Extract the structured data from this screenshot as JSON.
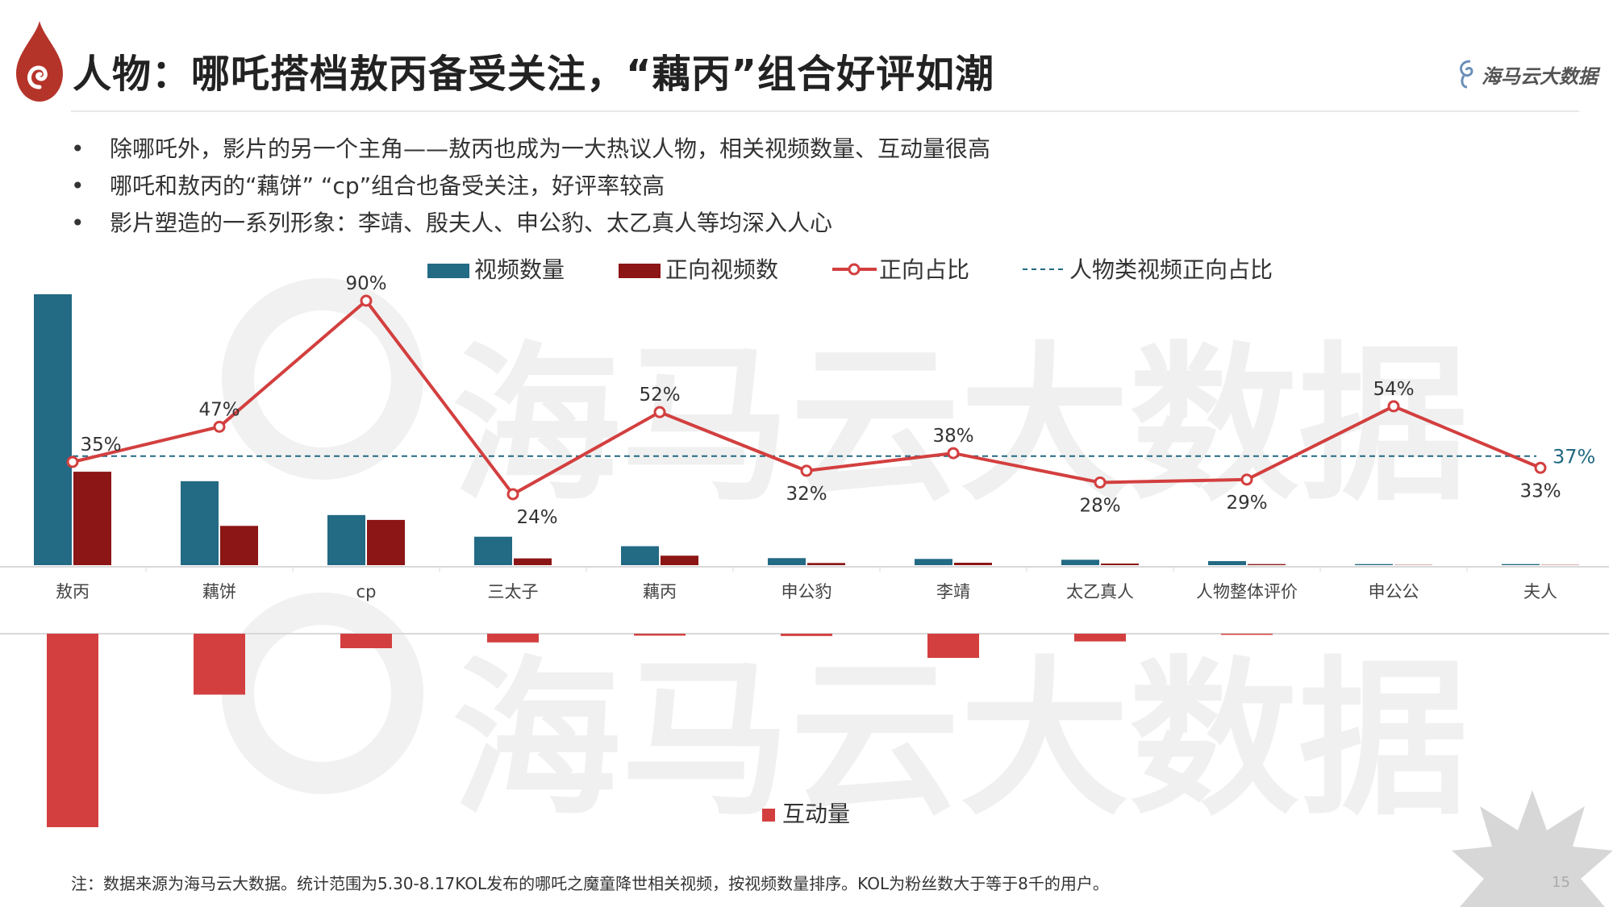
{
  "header": {
    "title": "人物：哪吒搭档敖丙备受关注，“藕丙”组合好评如潮",
    "logo_text": "海马云大数据",
    "watermark_text": "海马云大数据"
  },
  "bullets": [
    "除哪吒外，影片的另一个主角——敖丙也成为一大热议人物，相关视频数量、互动量很高",
    "哪吒和敖丙的“藕饼” “cp”组合也备受关注，好评率较高",
    "影片塑造的一系列形象：李靖、殷夫人、申公豹、太乙真人等均深入人心"
  ],
  "footnote": "注：数据来源为海马云大数据。统计范围为5.30-8.17KOL发布的哪吒之魔童降世相关视频，按视频数量排序。KOL为粉丝数大于等于8千的用户。",
  "page_number": "15",
  "colors": {
    "video_count": "#236a84",
    "positive_count": "#8c1515",
    "positive_ratio": "#d33f3f",
    "baseline": "#236a84",
    "interaction": "#d33f3f"
  },
  "chart_data": {
    "type": "bar",
    "categories": [
      "敖丙",
      "藕饼",
      "cp",
      "三太子",
      "藕丙",
      "申公豹",
      "李靖",
      "太乙真人",
      "人物整体评价",
      "申公公",
      "夫人"
    ],
    "series": [
      {
        "name": "视频数量",
        "kind": "bar",
        "values": [
          100,
          31,
          18.5,
          10.5,
          7,
          2.6,
          2.3,
          2,
          1.5,
          0.4,
          0.4
        ]
      },
      {
        "name": "正向视频数",
        "kind": "bar",
        "values": [
          34.5,
          14.5,
          16.7,
          2.5,
          3.5,
          0.8,
          0.9,
          0.6,
          0.4,
          0.1,
          0.1
        ]
      },
      {
        "name": "正向占比",
        "kind": "line",
        "values": [
          35,
          47,
          90,
          24,
          52,
          32,
          38,
          28,
          29,
          54,
          33
        ],
        "labels": [
          "35%",
          "47%",
          "90%",
          "24%",
          "52%",
          "32%",
          "38%",
          "28%",
          "29%",
          "54%",
          "33%"
        ]
      },
      {
        "name": "人物类视频正向占比",
        "kind": "reference",
        "value": 37,
        "label": "37%"
      },
      {
        "name": "互动量",
        "kind": "bar-down",
        "values": [
          100,
          31.5,
          7.5,
          4.5,
          1,
          1.2,
          12.5,
          4,
          0.6,
          0,
          0
        ]
      }
    ],
    "legend_position": "top",
    "ylim_ratio": [
      0,
      100
    ],
    "ylim_volume": [
      0,
      100
    ]
  }
}
